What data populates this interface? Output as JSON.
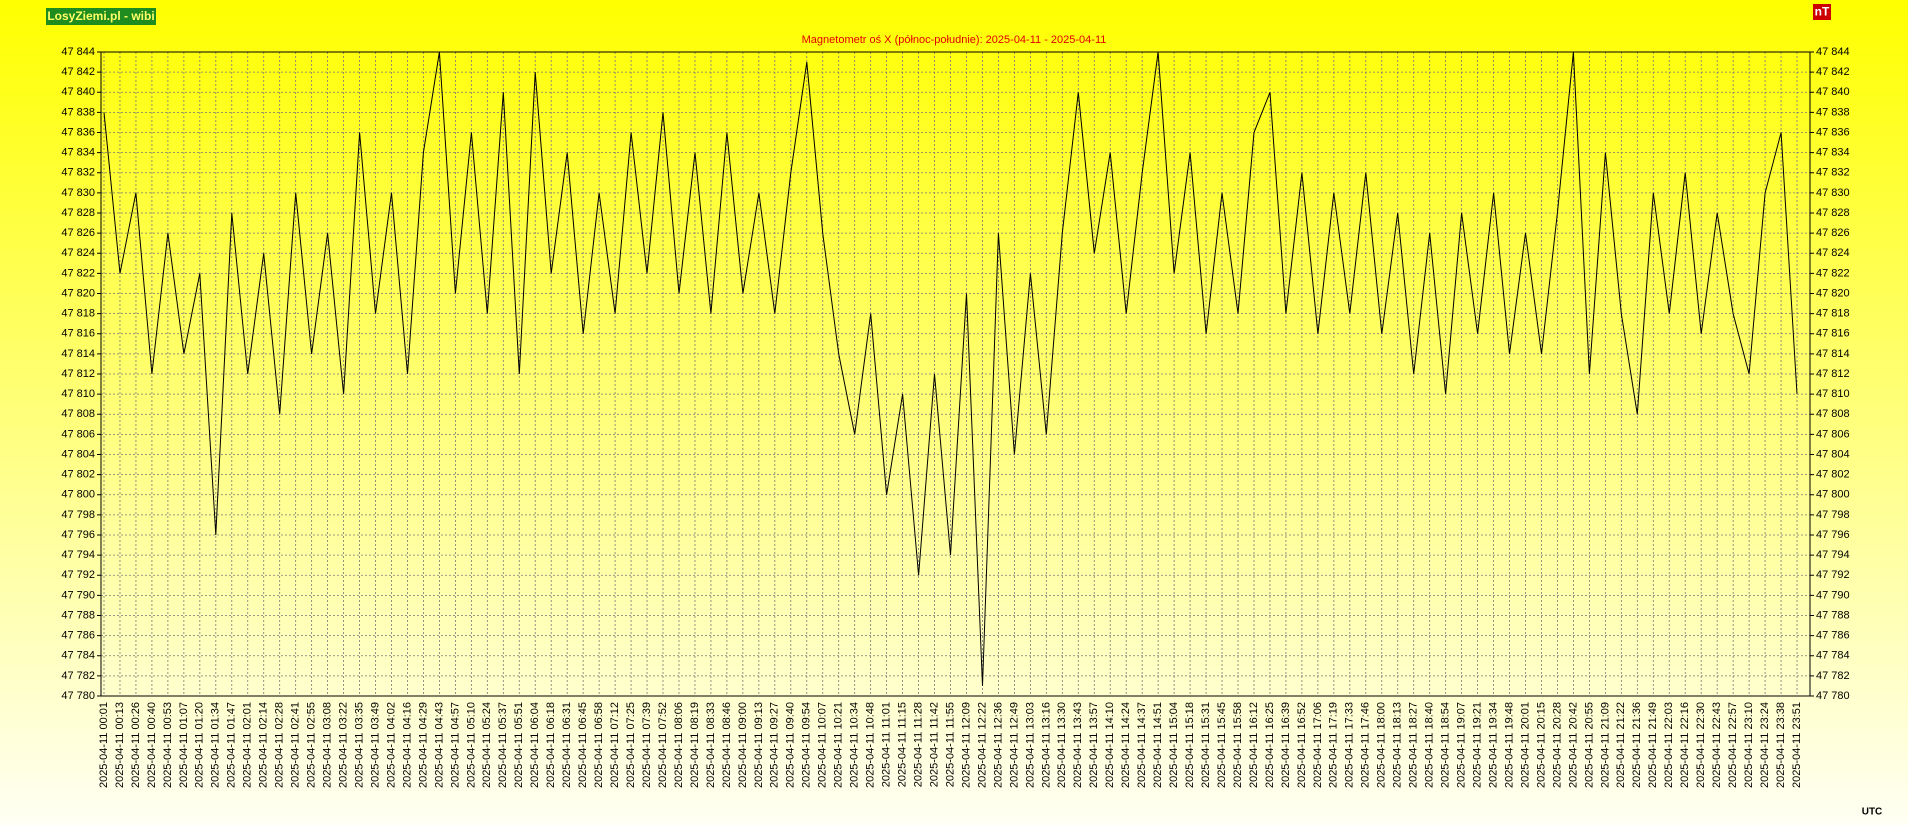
{
  "chart_data": {
    "type": "line",
    "title": "Magnetometr oś X (północ-południe): 2025-04-11 - 2025-04-11",
    "brand": "LosyZiemi.pl - wibi",
    "unit": "nT",
    "x_label": "UTC",
    "categories": [
      "2025-04-11 00:01",
      "2025-04-11 00:13",
      "2025-04-11 00:26",
      "2025-04-11 00:40",
      "2025-04-11 00:53",
      "2025-04-11 01:07",
      "2025-04-11 01:20",
      "2025-04-11 01:34",
      "2025-04-11 01:47",
      "2025-04-11 02:01",
      "2025-04-11 02:14",
      "2025-04-11 02:28",
      "2025-04-11 02:41",
      "2025-04-11 02:55",
      "2025-04-11 03:08",
      "2025-04-11 03:22",
      "2025-04-11 03:35",
      "2025-04-11 03:49",
      "2025-04-11 04:02",
      "2025-04-11 04:16",
      "2025-04-11 04:29",
      "2025-04-11 04:43",
      "2025-04-11 04:57",
      "2025-04-11 05:10",
      "2025-04-11 05:24",
      "2025-04-11 05:37",
      "2025-04-11 05:51",
      "2025-04-11 06:04",
      "2025-04-11 06:18",
      "2025-04-11 06:31",
      "2025-04-11 06:45",
      "2025-04-11 06:58",
      "2025-04-11 07:12",
      "2025-04-11 07:25",
      "2025-04-11 07:39",
      "2025-04-11 07:52",
      "2025-04-11 08:06",
      "2025-04-11 08:19",
      "2025-04-11 08:33",
      "2025-04-11 08:46",
      "2025-04-11 09:00",
      "2025-04-11 09:13",
      "2025-04-11 09:27",
      "2025-04-11 09:40",
      "2025-04-11 09:54",
      "2025-04-11 10:07",
      "2025-04-11 10:21",
      "2025-04-11 10:34",
      "2025-04-11 10:48",
      "2025-04-11 11:01",
      "2025-04-11 11:15",
      "2025-04-11 11:28",
      "2025-04-11 11:42",
      "2025-04-11 11:55",
      "2025-04-11 12:09",
      "2025-04-11 12:22",
      "2025-04-11 12:36",
      "2025-04-11 12:49",
      "2025-04-11 13:03",
      "2025-04-11 13:16",
      "2025-04-11 13:30",
      "2025-04-11 13:43",
      "2025-04-11 13:57",
      "2025-04-11 14:10",
      "2025-04-11 14:24",
      "2025-04-11 14:37",
      "2025-04-11 14:51",
      "2025-04-11 15:04",
      "2025-04-11 15:18",
      "2025-04-11 15:31",
      "2025-04-11 15:45",
      "2025-04-11 15:58",
      "2025-04-11 16:12",
      "2025-04-11 16:25",
      "2025-04-11 16:39",
      "2025-04-11 16:52",
      "2025-04-11 17:06",
      "2025-04-11 17:19",
      "2025-04-11 17:33",
      "2025-04-11 17:46",
      "2025-04-11 18:00",
      "2025-04-11 18:13",
      "2025-04-11 18:27",
      "2025-04-11 18:40",
      "2025-04-11 18:54",
      "2025-04-11 19:07",
      "2025-04-11 19:21",
      "2025-04-11 19:34",
      "2025-04-11 19:48",
      "2025-04-11 20:01",
      "2025-04-11 20:15",
      "2025-04-11 20:28",
      "2025-04-11 20:42",
      "2025-04-11 20:55",
      "2025-04-11 21:09",
      "2025-04-11 21:22",
      "2025-04-11 21:36",
      "2025-04-11 21:49",
      "2025-04-11 22:03",
      "2025-04-11 22:16",
      "2025-04-11 22:30",
      "2025-04-11 22:43",
      "2025-04-11 22:57",
      "2025-04-11 23:10",
      "2025-04-11 23:24",
      "2025-04-11 23:38",
      "2025-04-11 23:51"
    ],
    "values": [
      47838,
      47822,
      47830,
      47812,
      47826,
      47814,
      47822,
      47796,
      47828,
      47812,
      47824,
      47808,
      47830,
      47814,
      47826,
      47810,
      47836,
      47818,
      47830,
      47812,
      47834,
      47844,
      47820,
      47836,
      47818,
      47840,
      47812,
      47842,
      47822,
      47834,
      47816,
      47830,
      47818,
      47836,
      47822,
      47838,
      47820,
      47834,
      47818,
      47836,
      47820,
      47830,
      47818,
      47832,
      47843,
      47826,
      47814,
      47806,
      47818,
      47800,
      47810,
      47792,
      47812,
      47794,
      47820,
      47781,
      47826,
      47804,
      47822,
      47806,
      47826,
      47840,
      47824,
      47834,
      47818,
      47832,
      47844,
      47822,
      47834,
      47816,
      47830,
      47818,
      47836,
      47840,
      47818,
      47832,
      47816,
      47830,
      47818,
      47832,
      47816,
      47828,
      47812,
      47826,
      47810,
      47828,
      47816,
      47830,
      47814,
      47826,
      47814,
      47828,
      47844,
      47812,
      47834,
      47818,
      47808,
      47830,
      47818,
      47832,
      47816,
      47828,
      47818,
      47812,
      47830,
      47836,
      47810
    ],
    "color": "#000000",
    "ylim": [
      47780,
      47844
    ],
    "yticks": [
      {
        "value": 47780,
        "label": "47 780"
      },
      {
        "value": 47782,
        "label": "47 782"
      },
      {
        "value": 47784,
        "label": "47 784"
      },
      {
        "value": 47786,
        "label": "47 786"
      },
      {
        "value": 47788,
        "label": "47 788"
      },
      {
        "value": 47790,
        "label": "47 790"
      },
      {
        "value": 47792,
        "label": "47 792"
      },
      {
        "value": 47794,
        "label": "47 794"
      },
      {
        "value": 47796,
        "label": "47 796"
      },
      {
        "value": 47798,
        "label": "47 798"
      },
      {
        "value": 47800,
        "label": "47 800"
      },
      {
        "value": 47802,
        "label": "47 802"
      },
      {
        "value": 47804,
        "label": "47 804"
      },
      {
        "value": 47806,
        "label": "47 806"
      },
      {
        "value": 47808,
        "label": "47 808"
      },
      {
        "value": 47810,
        "label": "47 810"
      },
      {
        "value": 47812,
        "label": "47 812"
      },
      {
        "value": 47814,
        "label": "47 814"
      },
      {
        "value": 47816,
        "label": "47 816"
      },
      {
        "value": 47818,
        "label": "47 818"
      },
      {
        "value": 47820,
        "label": "47 820"
      },
      {
        "value": 47822,
        "label": "47 822"
      },
      {
        "value": 47824,
        "label": "47 824"
      },
      {
        "value": 47826,
        "label": "47 826"
      },
      {
        "value": 47828,
        "label": "47 828"
      },
      {
        "value": 47830,
        "label": "47 830"
      },
      {
        "value": 47832,
        "label": "47 832"
      },
      {
        "value": 47834,
        "label": "47 834"
      },
      {
        "value": 47836,
        "label": "47 836"
      },
      {
        "value": 47838,
        "label": "47 838"
      },
      {
        "value": 47840,
        "label": "47 840"
      },
      {
        "value": 47842,
        "label": "47 842"
      },
      {
        "value": 47844,
        "label": "47 844"
      }
    ],
    "grid": true
  }
}
